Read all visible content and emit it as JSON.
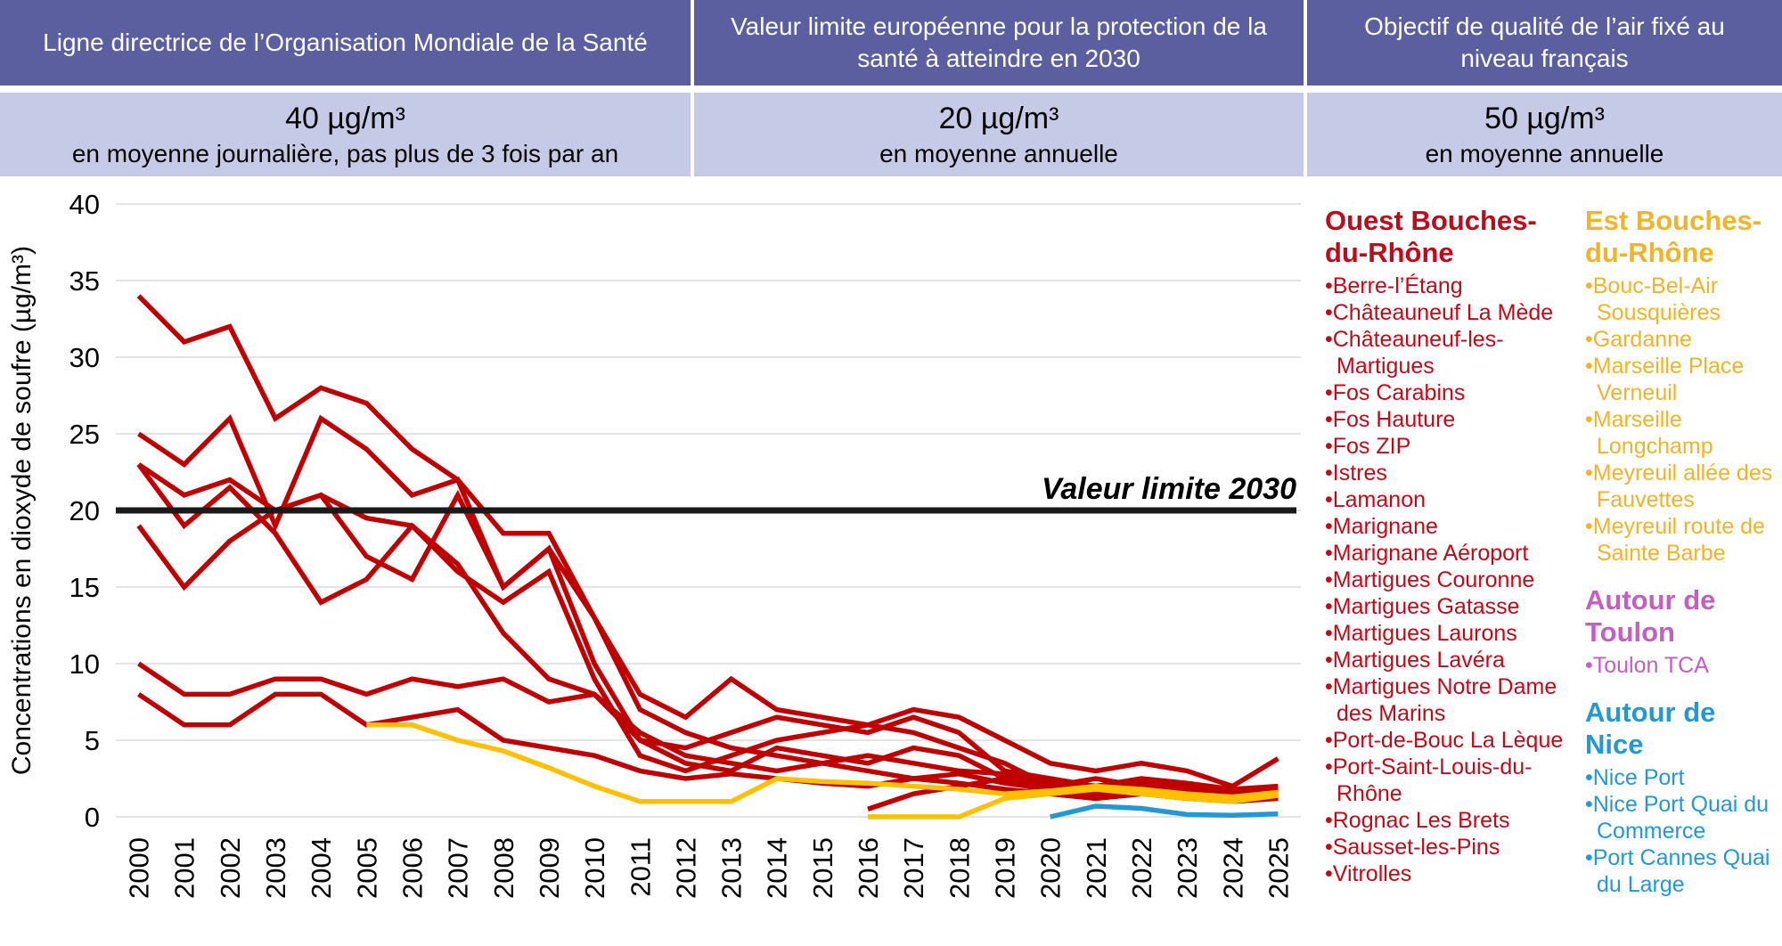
{
  "header": {
    "columns": [
      {
        "title": "Ligne directrice de l’Organisation Mondiale de la Santé",
        "value": "40 µg/m³",
        "note": "en moyenne journalière, pas plus de 3 fois par an"
      },
      {
        "title": "Valeur limite européenne pour la protection de la santé à atteindre en 2030",
        "value": "20 µg/m³",
        "note": "en moyenne annuelle"
      },
      {
        "title": "Objectif de qualité de l’air fixé au niveau français",
        "value": "50 µg/m³",
        "note": "en moyenne annuelle"
      }
    ]
  },
  "chart_data": {
    "type": "line",
    "title": "",
    "xlabel": "",
    "ylabel": "Concentrations en dioxyde de soufre (µg/m³)",
    "ylim": [
      0,
      40
    ],
    "yticks": [
      0,
      5,
      10,
      15,
      20,
      25,
      30,
      35,
      40
    ],
    "grid": true,
    "legend_position": "right",
    "x": [
      2000,
      2001,
      2002,
      2003,
      2004,
      2005,
      2006,
      2007,
      2008,
      2009,
      2010,
      2011,
      2012,
      2013,
      2014,
      2015,
      2016,
      2017,
      2018,
      2019,
      2020,
      2021,
      2022,
      2023,
      2024,
      2025
    ],
    "reference_line": {
      "value": 20,
      "label": "Valeur limite 2030",
      "color": "#1A1A1A"
    },
    "series": [
      {
        "id": "ouest-1",
        "group": "Ouest Bouches-du-Rhône",
        "color": "#C00000",
        "values": [
          34,
          31,
          32,
          26,
          28,
          27,
          24,
          22,
          18.5,
          18.5,
          13,
          8,
          6.5,
          9,
          7,
          6.5,
          6,
          7,
          6.5,
          5,
          3.5,
          3,
          3.5,
          3,
          2,
          3.8
        ]
      },
      {
        "id": "ouest-2",
        "group": "Ouest Bouches-du-Rhône",
        "color": "#C00000",
        "values": [
          25,
          23,
          26,
          19,
          26,
          24,
          21,
          22,
          15,
          17.5,
          10,
          5,
          4.5,
          5.5,
          6.5,
          6,
          5.5,
          6.5,
          5.5,
          3,
          2.5,
          2,
          2.5,
          2.2,
          1.8,
          2
        ]
      },
      {
        "id": "ouest-3",
        "group": "Ouest Bouches-du-Rhône",
        "color": "#C00000",
        "values": [
          23,
          21,
          22,
          20,
          21,
          19.5,
          19,
          16,
          14,
          16,
          9,
          4,
          3,
          4,
          5,
          5.5,
          6,
          5.5,
          4.5,
          3.5,
          2,
          2.5,
          2,
          1.8,
          1.5,
          1.8
        ]
      },
      {
        "id": "ouest-4",
        "group": "Ouest Bouches-du-Rhône",
        "color": "#C00000",
        "values": [
          23,
          19,
          21.5,
          18.5,
          14,
          15.5,
          19,
          16.5,
          12,
          9,
          8,
          5,
          3.5,
          3,
          4.5,
          4,
          3.5,
          4.5,
          4,
          2.5,
          2,
          1.8,
          2.2,
          2,
          1.5,
          1.7
        ]
      },
      {
        "id": "ouest-5",
        "group": "Ouest Bouches-du-Rhône",
        "color": "#C00000",
        "values": [
          19,
          15,
          18,
          20,
          21,
          17,
          15.5,
          21,
          15,
          17.5,
          13,
          7,
          5.5,
          4.5,
          4,
          3.5,
          4,
          3.5,
          3,
          2.8,
          2.2,
          2,
          1.8,
          1.5,
          1.3,
          1.5
        ]
      },
      {
        "id": "ouest-6",
        "group": "Ouest Bouches-du-Rhône",
        "color": "#C00000",
        "values": [
          10,
          8,
          8,
          9,
          9,
          8,
          9,
          8.5,
          9,
          7.5,
          8,
          5.5,
          4,
          3.5,
          3,
          3.5,
          3,
          2.5,
          2.8,
          2.2,
          1.8,
          1.5,
          1.7,
          1.4,
          1.2,
          1.4
        ]
      },
      {
        "id": "ouest-7",
        "group": "Ouest Bouches-du-Rhône",
        "color": "#C00000",
        "values": [
          8,
          6,
          6,
          8,
          8,
          6,
          6.5,
          7,
          5,
          4.5,
          4,
          3,
          2.5,
          2.8,
          2.5,
          2.2,
          2,
          2.5,
          2.2,
          1.8,
          1.5,
          1.2,
          1.5,
          1.2,
          1,
          1.2
        ]
      },
      {
        "id": "ouest-8",
        "group": "Ouest Bouches-du-Rhône",
        "color": "#C00000",
        "values": [
          null,
          null,
          null,
          null,
          null,
          null,
          null,
          null,
          null,
          null,
          null,
          null,
          null,
          null,
          null,
          null,
          0.5,
          1.5,
          2,
          2.5,
          1.5,
          1.2,
          1.5,
          1.8,
          1.5,
          1.2
        ]
      },
      {
        "id": "est-1",
        "group": "Est Bouches-du-Rhône",
        "color": "#FFC000",
        "values": [
          null,
          null,
          null,
          null,
          null,
          6,
          6,
          5,
          4.3,
          3.2,
          2,
          1,
          1,
          1,
          2.5,
          2.3,
          2.2,
          2,
          1.8,
          1.5,
          1.7,
          2,
          1.8,
          1.5,
          1.3,
          1.6
        ]
      },
      {
        "id": "est-2",
        "group": "Est Bouches-du-Rhône",
        "color": "#FFC000",
        "values": [
          null,
          null,
          null,
          null,
          null,
          null,
          null,
          null,
          null,
          null,
          null,
          null,
          null,
          null,
          null,
          null,
          0,
          0,
          0,
          1.2,
          1.5,
          1.8,
          1.5,
          1.2,
          1,
          1.4
        ]
      },
      {
        "id": "nice-1",
        "group": "Autour de Nice",
        "color": "#2398D4",
        "values": [
          null,
          null,
          null,
          null,
          null,
          null,
          null,
          null,
          null,
          null,
          null,
          null,
          null,
          null,
          null,
          null,
          null,
          null,
          null,
          null,
          0,
          0.7,
          0.55,
          0.15,
          0.1,
          0.2
        ]
      }
    ]
  },
  "legend": {
    "groups": [
      {
        "title": "Ouest Bouches-du-Rhône",
        "color": "#C00A1A",
        "items": [
          "Berre-l’Étang",
          "Châteauneuf La Mède",
          "Châteauneuf-les-Martigues",
          "Fos Carabins",
          "Fos Hauture",
          "Fos ZIP",
          "Istres",
          "Lamanon",
          "Marignane",
          "Marignane Aéroport",
          "Martigues Couronne",
          "Martigues Gatasse",
          "Martigues Laurons",
          "Martigues Lavéra",
          "Martigues Notre Dame des Marins",
          "Port-de-Bouc La Lèque",
          "Port-Saint-Louis-du-Rhône",
          "Rognac Les Brets",
          "Sausset-les-Pins",
          "Vitrolles"
        ]
      },
      {
        "title": "Est Bouches-du-Rhône",
        "color": "#F0B428",
        "items": [
          "Bouc-Bel-Air Sousquières",
          "Gardanne",
          "Marseille Place Verneuil",
          "Marseille Longchamp",
          "Meyreuil allée des Fauvettes",
          "Meyreuil route de Sainte Barbe"
        ]
      },
      {
        "title": "Autour de Toulon",
        "color": "#C45EC2",
        "items": [
          "Toulon TCA"
        ]
      },
      {
        "title": "Autour de Nice",
        "color": "#2398D4",
        "items": [
          "Nice Port",
          "Nice Port Quai du Commerce",
          "Port Cannes Quai du Large"
        ]
      }
    ],
    "columns": [
      [
        0
      ],
      [
        1,
        2,
        3
      ]
    ]
  }
}
